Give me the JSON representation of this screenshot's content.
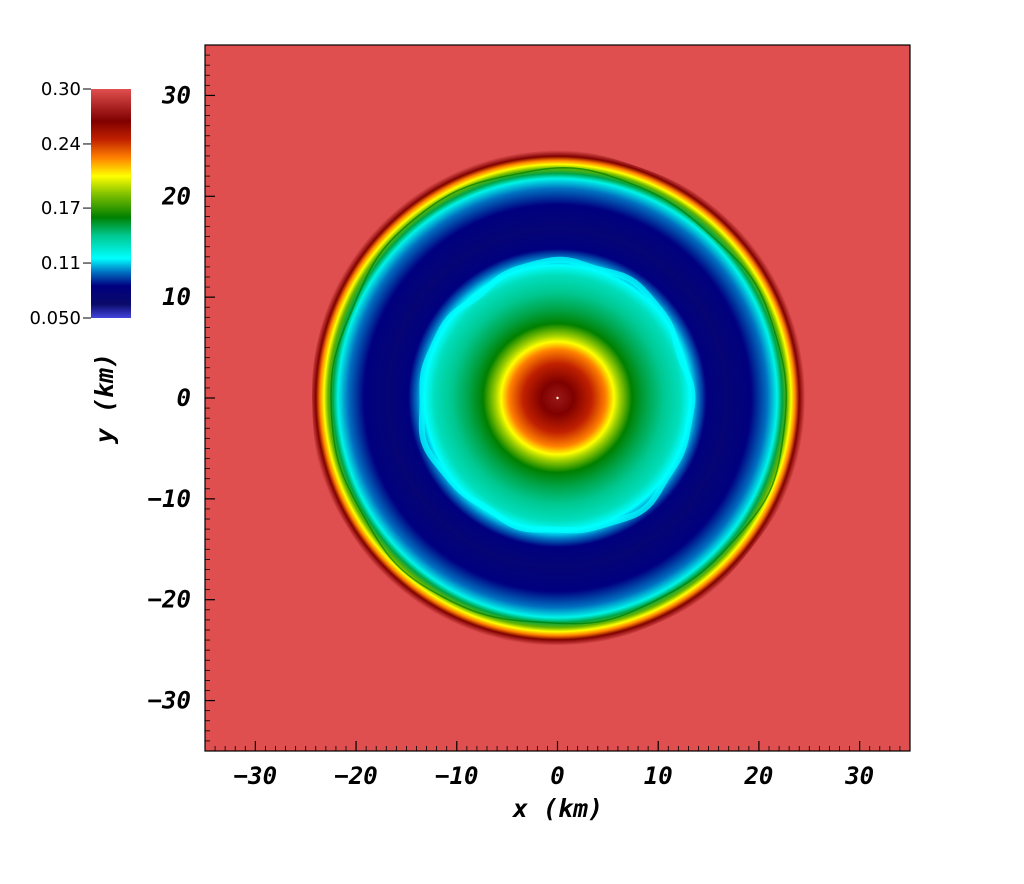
{
  "chart_data": {
    "type": "heatmap",
    "title": "",
    "xlabel": "x  (km)",
    "ylabel": "y  (km)",
    "xlim": [
      -35,
      35
    ],
    "ylim": [
      -35,
      35
    ],
    "x_ticks": [
      -30,
      -20,
      -10,
      0,
      10,
      20,
      30
    ],
    "y_ticks": [
      -30,
      -20,
      -10,
      0,
      10,
      20,
      30
    ],
    "x_tick_labels": [
      "−30",
      "−20",
      "−10",
      "0",
      "10",
      "20",
      "30"
    ],
    "y_tick_labels": [
      "−30",
      "−20",
      "−10",
      "0",
      "10",
      "20",
      "30"
    ],
    "colorbar": {
      "placement": "top-left",
      "min": 0.05,
      "max": 0.3,
      "tick_values": [
        0.3,
        0.24,
        0.17,
        0.11,
        0.05
      ],
      "tick_labels": [
        "0.30",
        "0.24",
        "0.17",
        "0.11",
        "0.050"
      ],
      "stops": [
        {
          "value": 0.05,
          "color": "#4444dd"
        },
        {
          "value": 0.065,
          "color": "#0a0a6a"
        },
        {
          "value": 0.085,
          "color": "#000080"
        },
        {
          "value": 0.1,
          "color": "#0070c0"
        },
        {
          "value": 0.115,
          "color": "#00ffff"
        },
        {
          "value": 0.14,
          "color": "#00c890"
        },
        {
          "value": 0.16,
          "color": "#008000"
        },
        {
          "value": 0.185,
          "color": "#80c000"
        },
        {
          "value": 0.205,
          "color": "#ffff00"
        },
        {
          "value": 0.225,
          "color": "#ff8000"
        },
        {
          "value": 0.245,
          "color": "#c02000"
        },
        {
          "value": 0.265,
          "color": "#800000"
        },
        {
          "value": 0.3,
          "color": "#e04f4f"
        }
      ]
    },
    "field_rings_km": [
      {
        "r": 24.6,
        "value": 0.3
      },
      {
        "r": 24.0,
        "value": 0.265
      },
      {
        "r": 23.6,
        "value": 0.225
      },
      {
        "r": 23.2,
        "value": 0.205
      },
      {
        "r": 22.8,
        "value": 0.18
      },
      {
        "r": 22.3,
        "value": 0.15
      },
      {
        "r": 21.8,
        "value": 0.12
      },
      {
        "r": 20.8,
        "value": 0.1
      },
      {
        "r": 19.2,
        "value": 0.085
      },
      {
        "r": 16.8,
        "value": 0.075
      },
      {
        "r": 14.8,
        "value": 0.085
      },
      {
        "r": 14.0,
        "value": 0.1
      },
      {
        "r": 13.2,
        "value": 0.115
      },
      {
        "r": 12.2,
        "value": 0.13
      },
      {
        "r": 10.5,
        "value": 0.14
      },
      {
        "r": 8.8,
        "value": 0.15
      },
      {
        "r": 7.4,
        "value": 0.16
      },
      {
        "r": 6.2,
        "value": 0.19
      },
      {
        "r": 5.6,
        "value": 0.205
      },
      {
        "r": 4.8,
        "value": 0.225
      },
      {
        "r": 3.4,
        "value": 0.245
      },
      {
        "r": 1.6,
        "value": 0.265
      },
      {
        "r": 0.0,
        "value": 0.275
      }
    ],
    "background_value": 0.3
  }
}
